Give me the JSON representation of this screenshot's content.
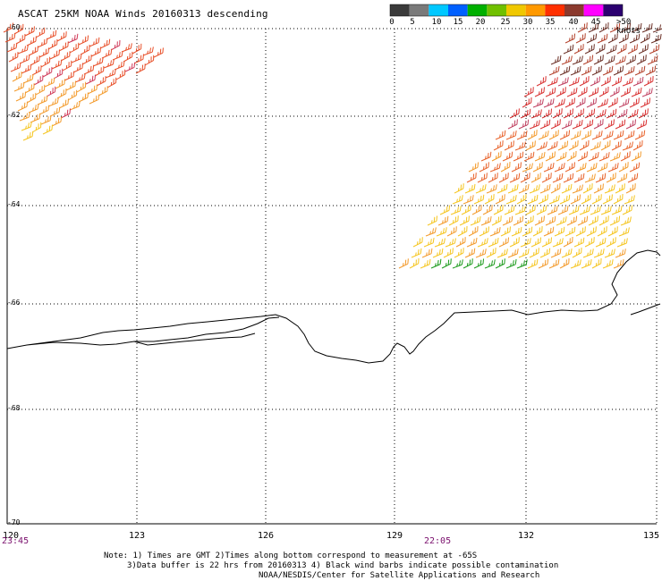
{
  "title": "ASCAT 25KM NOAA Winds 20160313 descending",
  "color_scale": {
    "labels": [
      "0",
      "5",
      "10",
      "15",
      "20",
      "25",
      "30",
      "35",
      "40",
      "45",
      ">50 knots"
    ],
    "colors": [
      "#3a3a3a",
      "#7a7a7a",
      "#00c8ff",
      "#0060ff",
      "#00b000",
      "#70c000",
      "#f0c800",
      "#ff9900",
      "#ff3000",
      "#8b3a2e",
      "#ff00ff",
      "#2c0070"
    ]
  },
  "axes": {
    "x_ticks": [
      "120",
      "123",
      "126",
      "129",
      "132",
      "135"
    ],
    "y_ticks": [
      "-60",
      "-62",
      "-64",
      "-66",
      "-68",
      "-70"
    ],
    "x_range": [
      120,
      135
    ],
    "y_range": [
      -70,
      -60
    ]
  },
  "times": {
    "left": "23:45",
    "right": "22:05"
  },
  "notes": {
    "line1": "Note: 1) Times are GMT 2)Times along bottom correspond to measurement at -65S",
    "line2": "3)Data buffer is 22 hrs from 20160313 4) Black wind barbs indicate possible contamination",
    "line3": "NOAA/NESDIS/Center for Satellite Applications and Research"
  }
}
